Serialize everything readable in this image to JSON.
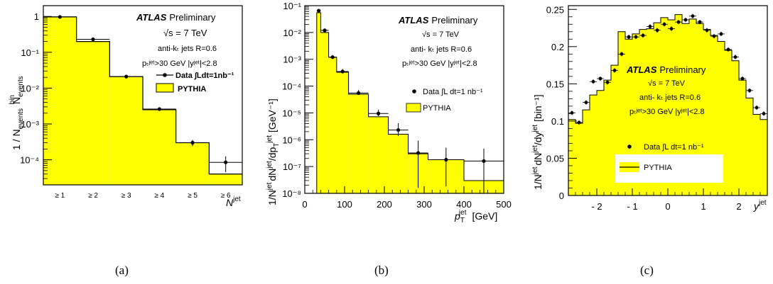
{
  "chart_data": [
    {
      "type": "bar",
      "panel_label": "(a)",
      "categories": [
        "≥ 1",
        "≥ 2",
        "≥ 3",
        "≥ 4",
        "≥ 5",
        "≥ 6"
      ],
      "series": [
        {
          "name": "Data ∫Ldt=1nb⁻¹",
          "values": [
            0.97,
            0.23,
            0.021,
            0.0026,
            0.0003,
            8.5e-05
          ]
        },
        {
          "name": "PYTHIA",
          "values": [
            0.97,
            0.2,
            0.021,
            0.0025,
            0.0003,
            4e-05
          ]
        }
      ],
      "xlabel": "N",
      "xlabel_sup": "jet",
      "ylabel": "1 / N",
      "ylabel_sub": "events",
      "ylabel_n": "N",
      "ylabel_n_sub": "events",
      "ylabel_n_sup": "bin",
      "yscale": "log",
      "ylim": [
        2e-05,
        2
      ],
      "y_ticks": [
        "10⁻⁴",
        "10⁻³",
        "10⁻²",
        "10⁻¹",
        "1"
      ],
      "atlas": "ATLAS",
      "preliminary": "Preliminary",
      "energy": "√s = 7 TeV",
      "algo": "anti-kₜ jets R=0.6",
      "cuts": "pₜʲᵉᵗ>30 GeV   |yʲᵉᵗ|<2.8",
      "legend_data": "Data ∫Ldt=1nb⁻¹",
      "legend_mc": "PYTHIA",
      "fill_color": "#ffff00"
    },
    {
      "type": "bar",
      "panel_label": "(b)",
      "bin_edges": [
        30,
        40,
        60,
        80,
        110,
        160,
        210,
        260,
        310,
        400,
        500
      ],
      "series": [
        {
          "name": "Data ∫L dt=1 nb⁻¹",
          "x": [
            35,
            50,
            70,
            95,
            135,
            185,
            235,
            285,
            355,
            450
          ],
          "values": [
            0.065,
            0.012,
            0.0012,
            0.00035,
            5.5e-05,
            9.5e-06,
            2.3e-06,
            3.2e-07,
            1.8e-07,
            1.6e-07
          ]
        },
        {
          "name": "PYTHIA",
          "values": [
            0.055,
            0.01,
            0.0012,
            0.00033,
            5e-05,
            7.2e-06,
            1.6e-06,
            3e-07,
            1.8e-07,
            3e-08
          ]
        }
      ],
      "xlabel": "p",
      "xlabel_sub": "T",
      "xlabel_sup": "jet",
      "xunit": "[GeV]",
      "ylabel": "1/N",
      "ylabel_sup": "jet",
      "ylabel_mid": "dN",
      "ylabel_mid_sup": "jet",
      "ylabel_end": "/dp",
      "ylabel_end_sub": "T",
      "ylabel_end_sup": "jet",
      "yunit": "[GeV⁻¹]",
      "yscale": "log",
      "xlim": [
        0,
        500
      ],
      "ylim": [
        1e-08,
        0.1
      ],
      "x_ticks": [
        "0",
        "100",
        "200",
        "300",
        "400",
        "500"
      ],
      "y_ticks": [
        "10⁻⁸",
        "10⁻⁷",
        "10⁻⁶",
        "10⁻⁵",
        "10⁻⁴",
        "10⁻³",
        "10⁻²",
        "10⁻¹"
      ],
      "atlas": "ATLAS",
      "preliminary": "Preliminary",
      "energy": "√s = 7 TeV",
      "algo": "anti- kₜ jets R=0.6",
      "cuts": "pₜʲᵉᵗ>30 GeV   |yʲᵉᵗ|<2.8",
      "legend_data": "Data  ∫L dt=1 nb⁻¹",
      "legend_mc": "PYTHIA",
      "fill_color": "#ffff00"
    },
    {
      "type": "bar",
      "panel_label": "(c)",
      "bin_edges": [
        -2.8,
        -2.6,
        -2.4,
        -2.2,
        -2.0,
        -1.8,
        -1.6,
        -1.4,
        -1.2,
        -1.0,
        -0.8,
        -0.6,
        -0.4,
        -0.2,
        0.0,
        0.2,
        0.4,
        0.6,
        0.8,
        1.0,
        1.2,
        1.4,
        1.6,
        1.8,
        2.0,
        2.2,
        2.4,
        2.6,
        2.8
      ],
      "series": [
        {
          "name": "Data ∫L dt=1 nb⁻¹",
          "values": [
            0.111,
            0.098,
            0.125,
            0.153,
            0.157,
            0.152,
            0.168,
            0.19,
            0.213,
            0.213,
            0.215,
            0.227,
            0.222,
            0.23,
            0.224,
            0.233,
            0.236,
            0.241,
            0.233,
            0.222,
            0.214,
            0.217,
            0.196,
            0.186,
            0.157,
            0.141,
            0.118,
            0.11
          ]
        },
        {
          "name": "PYTHIA",
          "values": [
            0.102,
            0.097,
            0.115,
            0.135,
            0.141,
            0.155,
            0.175,
            0.22,
            0.21,
            0.217,
            0.223,
            0.224,
            0.232,
            0.239,
            0.236,
            0.243,
            0.231,
            0.237,
            0.231,
            0.223,
            0.215,
            0.207,
            0.195,
            0.181,
            0.155,
            0.131,
            0.109,
            0.102
          ]
        }
      ],
      "xlabel": "y",
      "xlabel_sup": "jet",
      "ylabel": "1/N",
      "ylabel_sup": "jet",
      "ylabel_mid": "dN",
      "ylabel_mid_sup": "jet",
      "ylabel_end": "/dy",
      "ylabel_end_sup": "jet",
      "yunit": "[bin⁻¹]",
      "xlim": [
        -2.8,
        2.8
      ],
      "ylim": [
        0,
        0.255
      ],
      "x_ticks": [
        "- 2",
        "- 1",
        "0",
        "1",
        "2"
      ],
      "y_ticks": [
        "0",
        "0.05",
        "0.1",
        "0.15",
        "0.2",
        "0.25"
      ],
      "atlas": "ATLAS",
      "preliminary": "Preliminary",
      "energy": "√s = 7 TeV",
      "algo": "anti- kₜ jets R=0.6",
      "cuts": "pₜʲᵉᵗ>30 GeV   |yʲᵉᵗ|<2.8",
      "legend_data": "Data  ∫L dt=1 nb⁻¹",
      "legend_mc": "PYTHIA",
      "fill_color": "#ffff00"
    }
  ]
}
